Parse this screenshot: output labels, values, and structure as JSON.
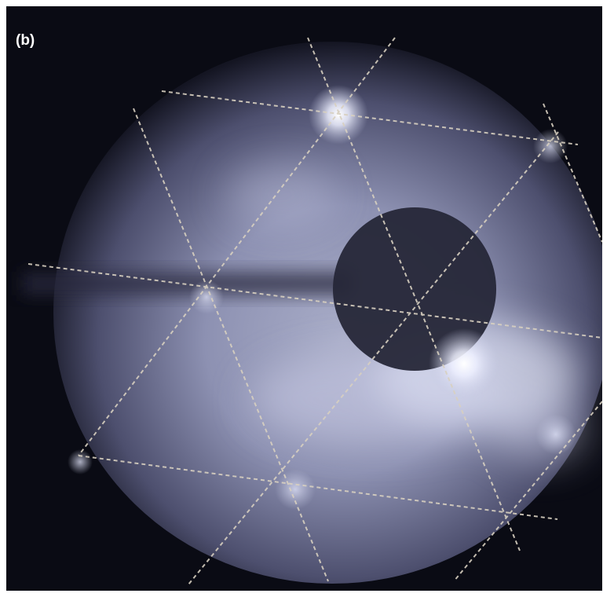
{
  "figure": {
    "panel_label": "(b)"
  },
  "colors": {
    "background": "#0a0b14",
    "glow": "#c9cde6",
    "bright_spot": "#ffffff",
    "pattern_lines": "#d8d0c0",
    "dark_disk": "#1a1a2a"
  }
}
